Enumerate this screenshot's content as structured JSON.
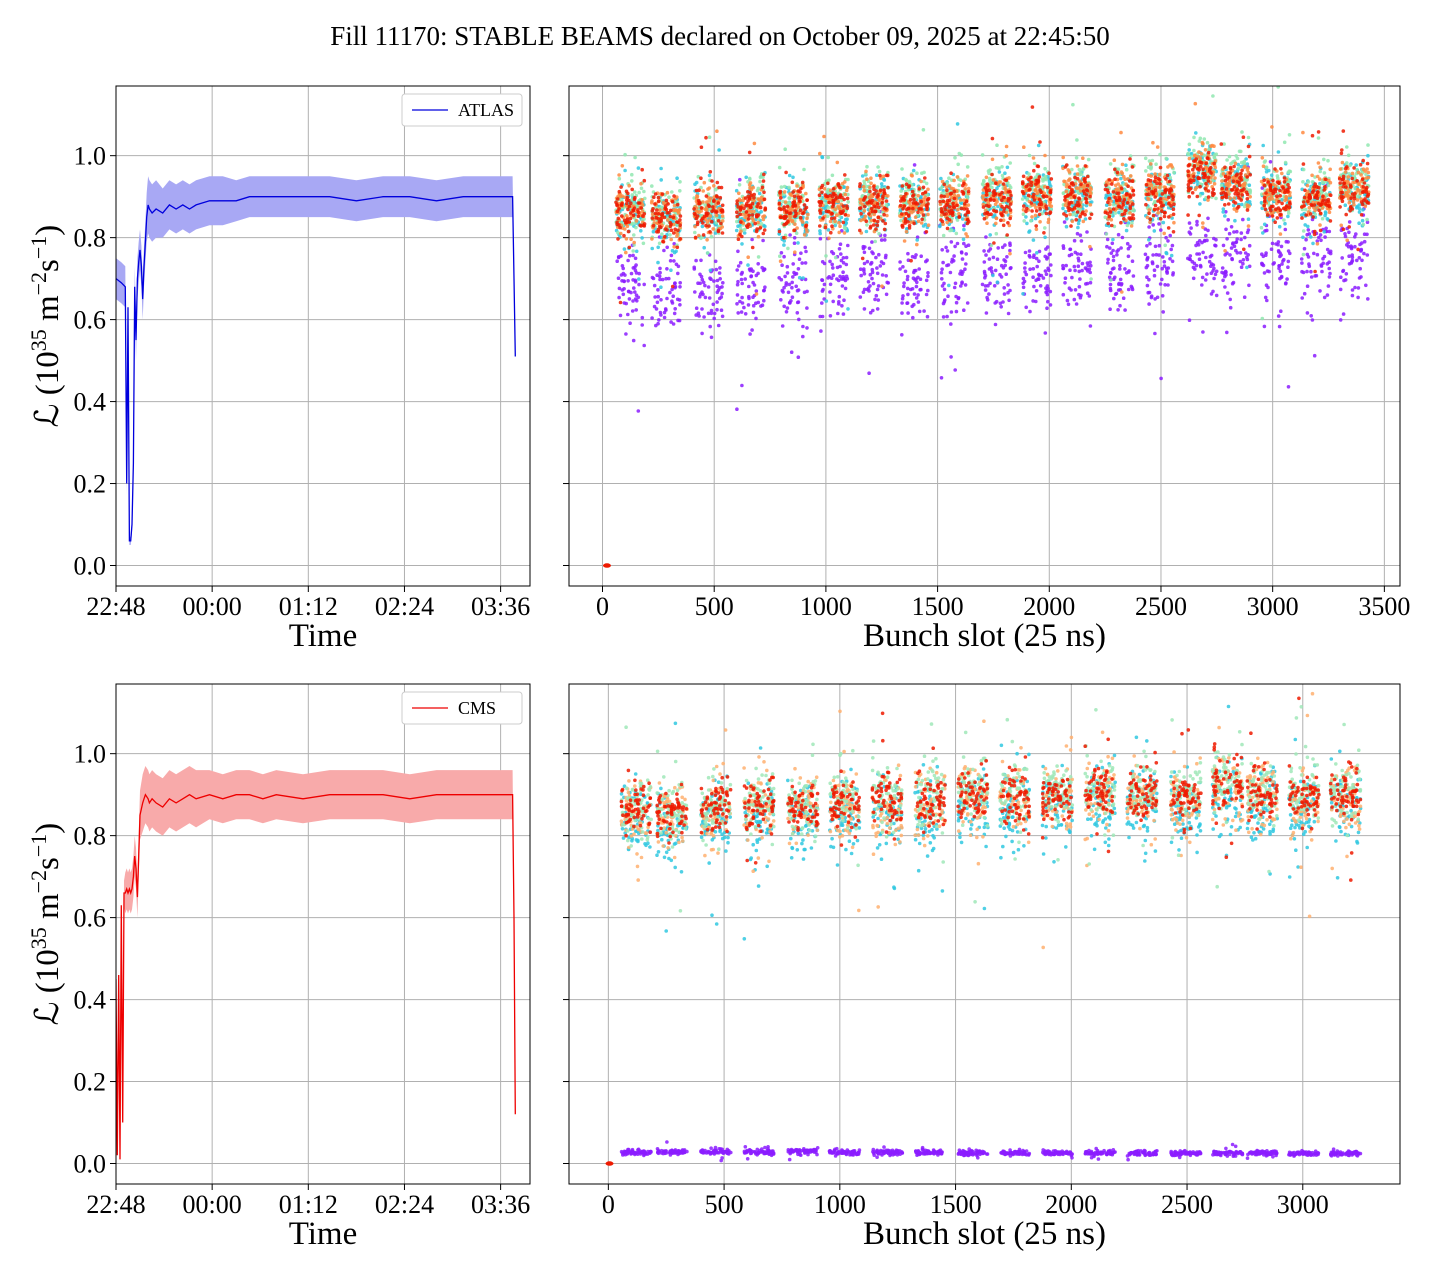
{
  "title": "Fill 11170: STABLE BEAMS declared on October 09, 2025 at 22:45:50",
  "colors": {
    "atlas": "#0000dd",
    "atlas_band": "#a8a8f4",
    "cms": "#ee0000",
    "cms_band": "#f8aaaa"
  },
  "chart_data": [
    {
      "id": "atlas-time",
      "type": "line",
      "xlabel": "Time",
      "ylabel": "ℒ (10^35 m^-2 s^-1)",
      "xlim": [
        0,
        310
      ],
      "ylim": [
        -0.05,
        1.17
      ],
      "xticks": [
        {
          "value": 0,
          "label": "22:48"
        },
        {
          "value": 72,
          "label": "00:00"
        },
        {
          "value": 144,
          "label": "01:12"
        },
        {
          "value": 216,
          "label": "02:24"
        },
        {
          "value": 288,
          "label": "03:36"
        }
      ],
      "yticks": [
        0.0,
        0.2,
        0.4,
        0.6,
        0.8,
        1.0
      ],
      "ytick_labels": [
        "0.0",
        "0.2",
        "0.4",
        "0.6",
        "0.8",
        "1.0"
      ],
      "legend": {
        "position": "upper-right",
        "entries": [
          "ATLAS"
        ]
      },
      "grid": true,
      "series": [
        {
          "name": "ATLAS",
          "color": "#0000dd",
          "band_color": "#a8a8f4",
          "x": [
            0,
            4,
            7,
            8,
            9,
            10,
            11,
            12,
            13,
            14,
            15,
            16,
            17,
            18,
            19,
            20,
            21,
            22,
            23,
            24,
            25,
            27,
            30,
            35,
            40,
            45,
            50,
            55,
            60,
            70,
            80,
            90,
            100,
            110,
            120,
            140,
            160,
            180,
            200,
            220,
            240,
            260,
            280,
            297,
            298,
            299
          ],
          "y": [
            0.7,
            0.69,
            0.68,
            0.2,
            0.63,
            0.06,
            0.06,
            0.1,
            0.25,
            0.68,
            0.55,
            0.7,
            0.74,
            0.77,
            0.73,
            0.65,
            0.73,
            0.79,
            0.85,
            0.88,
            0.87,
            0.86,
            0.87,
            0.86,
            0.88,
            0.87,
            0.88,
            0.87,
            0.88,
            0.89,
            0.89,
            0.89,
            0.9,
            0.9,
            0.9,
            0.9,
            0.9,
            0.89,
            0.9,
            0.9,
            0.89,
            0.9,
            0.9,
            0.9,
            0.7,
            0.51
          ],
          "band_half_width": [
            0.05,
            0.05,
            0.05,
            0.03,
            0.03,
            0.01,
            0.01,
            0.02,
            0.03,
            0.05,
            0.05,
            0.05,
            0.05,
            0.05,
            0.05,
            0.05,
            0.05,
            0.05,
            0.06,
            0.07,
            0.07,
            0.07,
            0.07,
            0.06,
            0.06,
            0.06,
            0.06,
            0.06,
            0.06,
            0.06,
            0.06,
            0.05,
            0.05,
            0.05,
            0.05,
            0.05,
            0.05,
            0.05,
            0.05,
            0.05,
            0.05,
            0.05,
            0.05,
            0.05,
            0.02,
            0.0
          ]
        }
      ]
    },
    {
      "id": "atlas-bunch",
      "type": "scatter",
      "xlabel": "Bunch slot (25 ns)",
      "xlim": [
        -150,
        3570
      ],
      "ylim": [
        -0.05,
        1.17
      ],
      "xticks": [
        {
          "value": 0,
          "label": "0"
        },
        {
          "value": 500,
          "label": "500"
        },
        {
          "value": 1000,
          "label": "1000"
        },
        {
          "value": 1500,
          "label": "1500"
        },
        {
          "value": 2000,
          "label": "2000"
        },
        {
          "value": 2500,
          "label": "2500"
        },
        {
          "value": 3000,
          "label": "3000"
        },
        {
          "value": 3500,
          "label": "3500"
        }
      ],
      "yticks": [
        0.0,
        0.2,
        0.4,
        0.6,
        0.8,
        1.0
      ],
      "grid": true,
      "train_starts": [
        60,
        220,
        410,
        600,
        790,
        970,
        1150,
        1330,
        1510,
        1700,
        1880,
        2060,
        2250,
        2430,
        2620,
        2770,
        2950,
        3130,
        3300
      ],
      "train_length": 130,
      "series": [
        {
          "name": "",
          "color": "#8b1cff",
          "mean": [
            0.68,
            0.66,
            0.67,
            0.68,
            0.69,
            0.7,
            0.7,
            0.69,
            0.71,
            0.7,
            0.71,
            0.72,
            0.72,
            0.73,
            0.74,
            0.76,
            0.74,
            0.74,
            0.76
          ],
          "spread": 0.05
        },
        {
          "name": "",
          "color": "#30c8e0",
          "mean": [
            0.85,
            0.85,
            0.85,
            0.86,
            0.86,
            0.87,
            0.88,
            0.87,
            0.88,
            0.89,
            0.89,
            0.9,
            0.89,
            0.9,
            0.96,
            0.92,
            0.9,
            0.89,
            0.91
          ],
          "spread": 0.035
        },
        {
          "name": "",
          "color": "#90e8b0",
          "mean": [
            0.87,
            0.86,
            0.87,
            0.88,
            0.88,
            0.89,
            0.9,
            0.89,
            0.9,
            0.91,
            0.91,
            0.92,
            0.91,
            0.92,
            0.98,
            0.94,
            0.92,
            0.91,
            0.93
          ],
          "spread": 0.035
        },
        {
          "name": "",
          "color": "#ff8a40",
          "mean": [
            0.86,
            0.85,
            0.86,
            0.87,
            0.87,
            0.88,
            0.89,
            0.88,
            0.89,
            0.9,
            0.9,
            0.91,
            0.9,
            0.91,
            0.97,
            0.93,
            0.91,
            0.9,
            0.92
          ],
          "spread": 0.03
        },
        {
          "name": "",
          "color": "#ee1a00",
          "mean": [
            0.86,
            0.85,
            0.86,
            0.87,
            0.86,
            0.88,
            0.88,
            0.88,
            0.88,
            0.89,
            0.9,
            0.9,
            0.89,
            0.9,
            0.96,
            0.92,
            0.9,
            0.89,
            0.91
          ],
          "spread": 0.03
        }
      ],
      "marker_at_zero": {
        "x": 20,
        "y": 0.0,
        "color": "#ee1a00"
      }
    },
    {
      "id": "cms-time",
      "type": "line",
      "xlabel": "Time",
      "ylabel": "ℒ (10^35 m^-2 s^-1)",
      "xlim": [
        0,
        310
      ],
      "ylim": [
        -0.05,
        1.17
      ],
      "xticks": [
        {
          "value": 0,
          "label": "22:48"
        },
        {
          "value": 72,
          "label": "00:00"
        },
        {
          "value": 144,
          "label": "01:12"
        },
        {
          "value": 216,
          "label": "02:24"
        },
        {
          "value": 288,
          "label": "03:36"
        }
      ],
      "yticks": [
        0.0,
        0.2,
        0.4,
        0.6,
        0.8,
        1.0
      ],
      "ytick_labels": [
        "0.0",
        "0.2",
        "0.4",
        "0.6",
        "0.8",
        "1.0"
      ],
      "legend": {
        "position": "upper-right",
        "entries": [
          "CMS"
        ]
      },
      "grid": true,
      "series": [
        {
          "name": "CMS",
          "color": "#ee0000",
          "band_color": "#f8aaaa",
          "x": [
            -1,
            0,
            1,
            2,
            3,
            4,
            5,
            6,
            7,
            8,
            9,
            10,
            11,
            12,
            13,
            14,
            15,
            16,
            18,
            20,
            21,
            22,
            24,
            25,
            27,
            30,
            35,
            40,
            45,
            50,
            55,
            60,
            70,
            80,
            90,
            100,
            110,
            120,
            140,
            160,
            180,
            200,
            220,
            240,
            260,
            280,
            297,
            298,
            299
          ],
          "y": [
            0.03,
            0.45,
            0.02,
            0.46,
            0.01,
            0.63,
            0.1,
            0.66,
            0.66,
            0.67,
            0.66,
            0.67,
            0.66,
            0.67,
            0.7,
            0.75,
            0.72,
            0.65,
            0.85,
            0.88,
            0.89,
            0.9,
            0.89,
            0.88,
            0.89,
            0.88,
            0.87,
            0.89,
            0.88,
            0.89,
            0.9,
            0.89,
            0.9,
            0.89,
            0.9,
            0.9,
            0.89,
            0.9,
            0.89,
            0.9,
            0.9,
            0.9,
            0.89,
            0.9,
            0.9,
            0.9,
            0.9,
            0.6,
            0.12
          ],
          "band_half_width": [
            0.0,
            0.02,
            0.0,
            0.02,
            0.0,
            0.03,
            0.0,
            0.03,
            0.05,
            0.05,
            0.05,
            0.05,
            0.05,
            0.05,
            0.05,
            0.05,
            0.05,
            0.05,
            0.06,
            0.07,
            0.07,
            0.07,
            0.07,
            0.07,
            0.07,
            0.07,
            0.07,
            0.07,
            0.07,
            0.07,
            0.07,
            0.07,
            0.06,
            0.06,
            0.06,
            0.06,
            0.06,
            0.06,
            0.06,
            0.06,
            0.06,
            0.06,
            0.06,
            0.06,
            0.06,
            0.06,
            0.06,
            0.02,
            0.0
          ]
        }
      ]
    },
    {
      "id": "cms-bunch",
      "type": "scatter",
      "xlabel": "Bunch slot (25 ns)",
      "xlim": [
        -170,
        3420
      ],
      "ylim": [
        -0.05,
        1.17
      ],
      "xticks": [
        {
          "value": 0,
          "label": "0"
        },
        {
          "value": 500,
          "label": "500"
        },
        {
          "value": 1000,
          "label": "1000"
        },
        {
          "value": 1500,
          "label": "1500"
        },
        {
          "value": 2000,
          "label": "2000"
        },
        {
          "value": 2500,
          "label": "2500"
        },
        {
          "value": 3000,
          "label": "3000"
        }
      ],
      "yticks": [
        0.0,
        0.2,
        0.4,
        0.6,
        0.8,
        1.0
      ],
      "grid": true,
      "train_starts": [
        55,
        210,
        400,
        585,
        775,
        955,
        1140,
        1325,
        1510,
        1690,
        1875,
        2060,
        2240,
        2430,
        2610,
        2760,
        2940,
        3120
      ],
      "train_length": 130,
      "series": [
        {
          "name": "",
          "color": "#8b1cff",
          "mean": [
            0.027,
            0.028,
            0.028,
            0.028,
            0.03,
            0.027,
            0.027,
            0.027,
            0.026,
            0.026,
            0.026,
            0.026,
            0.025,
            0.025,
            0.025,
            0.025,
            0.024,
            0.024
          ],
          "spread": 0.003
        },
        {
          "name": "",
          "color": "#30c8e0",
          "mean": [
            0.83,
            0.82,
            0.84,
            0.84,
            0.84,
            0.85,
            0.85,
            0.85,
            0.87,
            0.86,
            0.87,
            0.88,
            0.87,
            0.86,
            0.89,
            0.87,
            0.86,
            0.87
          ],
          "spread": 0.045
        },
        {
          "name": "",
          "color": "#ffb070",
          "mean": [
            0.85,
            0.84,
            0.86,
            0.86,
            0.86,
            0.87,
            0.87,
            0.87,
            0.89,
            0.88,
            0.89,
            0.9,
            0.89,
            0.88,
            0.91,
            0.89,
            0.88,
            0.89
          ],
          "spread": 0.04
        },
        {
          "name": "",
          "color": "#a0e8b8",
          "mean": [
            0.87,
            0.86,
            0.88,
            0.88,
            0.88,
            0.89,
            0.89,
            0.89,
            0.91,
            0.9,
            0.91,
            0.92,
            0.91,
            0.9,
            0.93,
            0.91,
            0.9,
            0.91
          ],
          "spread": 0.035
        },
        {
          "name": "",
          "color": "#ee1a00",
          "mean": [
            0.86,
            0.85,
            0.87,
            0.87,
            0.87,
            0.88,
            0.88,
            0.88,
            0.9,
            0.89,
            0.9,
            0.91,
            0.9,
            0.89,
            0.92,
            0.9,
            0.89,
            0.9
          ],
          "spread": 0.03
        }
      ],
      "marker_at_zero": {
        "x": 5,
        "y": 0.0,
        "color": "#ee1a00"
      }
    }
  ]
}
